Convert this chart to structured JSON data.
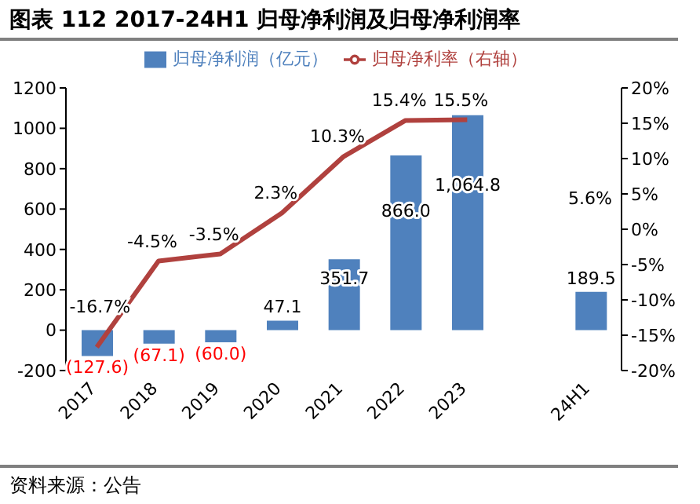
{
  "chart_data": {
    "type": "bar",
    "title": "图表 112 2017-24H1 归母净利润及归母净利润率",
    "annotations": [
      "资料来源：公告",
      "5.6%"
    ],
    "categories": [
      "2017",
      "2018",
      "2019",
      "2020",
      "2021",
      "2022",
      "2023",
      null,
      "24H1"
    ],
    "series": [
      {
        "name": "归母净利润（亿元）",
        "color": "#4f81bd",
        "values": [
          -127.6,
          -67.1,
          -60.0,
          47.1,
          351.7,
          866.0,
          1064.8,
          null,
          189.5
        ],
        "value_labels": [
          "(127.6)",
          "(67.1)",
          "(60.0)",
          "47.1",
          "351.7",
          "866.0",
          "1,064.8",
          null,
          "189.5"
        ]
      },
      {
        "name": "归母净利率（右轴）",
        "type": "line",
        "axis": "y2",
        "color": "#b0413e",
        "values": [
          -16.7,
          -4.5,
          -3.5,
          2.3,
          10.3,
          15.4,
          15.5,
          null,
          null
        ],
        "value_labels": [
          "-16.7%",
          "-4.5%",
          "-3.5%",
          "2.3%",
          "10.3%",
          "15.4%",
          "15.5%",
          null,
          null
        ]
      }
    ],
    "ylim": [
      -200,
      1200
    ],
    "yticks": [
      -200,
      0,
      200,
      400,
      600,
      800,
      1000,
      1200
    ],
    "y2lim": [
      -20,
      20
    ],
    "y2ticks": [
      {
        "value": -20,
        "label": "-20%"
      },
      {
        "value": -15,
        "label": "-15%"
      },
      {
        "value": -10,
        "label": "-10%"
      },
      {
        "value": -5,
        "label": "-5%"
      },
      {
        "value": 0,
        "label": "0%"
      },
      {
        "value": 5,
        "label": "5%"
      },
      {
        "value": 10,
        "label": "10%"
      },
      {
        "value": 15,
        "label": "15%"
      },
      {
        "value": 20,
        "label": "20%"
      }
    ],
    "grid": false,
    "legend": "top",
    "line_style": "solid",
    "marker": "none"
  }
}
